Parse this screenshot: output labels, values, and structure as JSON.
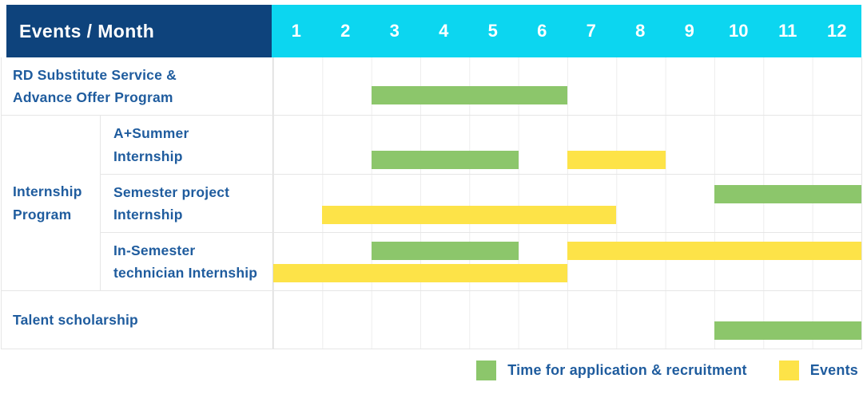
{
  "header": {
    "title": "Events / Month",
    "months": [
      "1",
      "2",
      "3",
      "4",
      "5",
      "6",
      "7",
      "8",
      "9",
      "10",
      "11",
      "12"
    ]
  },
  "colors": {
    "navy": "#0e437c",
    "cyan": "#0cd6f0",
    "green": "#8cc66b",
    "yellow": "#fde348",
    "label_blue": "#1f5c9e"
  },
  "group": {
    "label": "Internship Program",
    "lines": [
      "Internship",
      "Program"
    ]
  },
  "legend": {
    "items": [
      {
        "label": "Time for application & recruitment",
        "color": "green"
      },
      {
        "label": "Events",
        "color": "yellow"
      }
    ]
  },
  "chart_data": {
    "type": "table",
    "subtype": "gantt",
    "title": "Events / Month",
    "x_categories": [
      1,
      2,
      3,
      4,
      5,
      6,
      7,
      8,
      9,
      10,
      11,
      12
    ],
    "x_range": [
      1,
      12
    ],
    "legend": {
      "green": "Time for application & recruitment",
      "yellow": "Events"
    },
    "rows": [
      {
        "group": null,
        "label": "RD Substitute Service & Advance Offer Program",
        "label_lines": [
          "RD Substitute Service &",
          "Advance Offer Program"
        ],
        "bars": [
          {
            "color": "green",
            "meaning": "Time for application & recruitment",
            "start_month": 3,
            "end_month": 6
          }
        ]
      },
      {
        "group": "Internship Program",
        "label": "A+Summer Internship",
        "label_lines": [
          "A+Summer",
          "Internship"
        ],
        "bars": [
          {
            "color": "green",
            "meaning": "Time for application & recruitment",
            "start_month": 3,
            "end_month": 5
          },
          {
            "color": "yellow",
            "meaning": "Events",
            "start_month": 7,
            "end_month": 8
          }
        ]
      },
      {
        "group": "Internship Program",
        "label": "Semester project Internship",
        "label_lines": [
          "Semester project",
          "Internship"
        ],
        "bars": [
          {
            "color": "green",
            "meaning": "Time for application & recruitment",
            "start_month": 10,
            "end_month": 12
          },
          {
            "color": "yellow",
            "meaning": "Events",
            "start_month": 2,
            "end_month": 7
          }
        ]
      },
      {
        "group": "Internship Program",
        "label": "In-Semester technician Internship",
        "label_lines": [
          "In-Semester",
          "technician Internship"
        ],
        "bars": [
          {
            "color": "green",
            "meaning": "Time for application & recruitment",
            "start_month": 3,
            "end_month": 5
          },
          {
            "color": "yellow",
            "meaning": "Events",
            "start_month": 7,
            "end_month": 12
          },
          {
            "color": "yellow",
            "meaning": "Events",
            "start_month": 1,
            "end_month": 6
          }
        ]
      },
      {
        "group": null,
        "label": "Talent scholarship",
        "label_lines": [
          "Talent scholarship",
          ""
        ],
        "bars": [
          {
            "color": "green",
            "meaning": "Time for application & recruitment",
            "start_month": 10,
            "end_month": 12
          }
        ]
      }
    ]
  }
}
